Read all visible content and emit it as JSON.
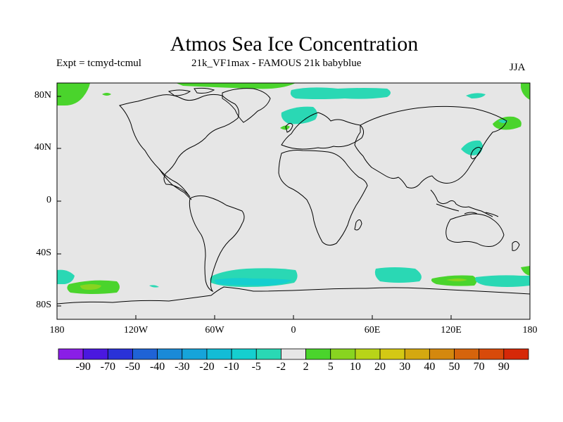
{
  "title": "Atmos Sea Ice Concentration",
  "expt": "Expt = tcmyd-tcmul",
  "run": "21k_VF1max - FAMOUS 21k babyblue",
  "season": "JJA",
  "axes": {
    "lon_ticks": [
      "180",
      "120W",
      "60W",
      "0",
      "60E",
      "120E",
      "180"
    ],
    "lat_ticks": [
      "80N",
      "40N",
      "0",
      "40S",
      "80S"
    ]
  },
  "colorbar": {
    "labels": [
      "-90",
      "-70",
      "-50",
      "-40",
      "-30",
      "-20",
      "-10",
      "-5",
      "-2",
      "2",
      "5",
      "10",
      "20",
      "30",
      "40",
      "50",
      "70",
      "90"
    ],
    "colors": [
      "#8a1ee6",
      "#4a18e0",
      "#2a32d8",
      "#1f63d6",
      "#1a8ad8",
      "#16a4da",
      "#13bcd6",
      "#15cfcf",
      "#2ad8b4",
      "#e6e6e6",
      "#4ad42c",
      "#88d420",
      "#b8d418",
      "#d4c814",
      "#d4a810",
      "#d4880e",
      "#d6640c",
      "#d84a0a",
      "#d62808"
    ]
  },
  "background_color": "#e6e6e6"
}
